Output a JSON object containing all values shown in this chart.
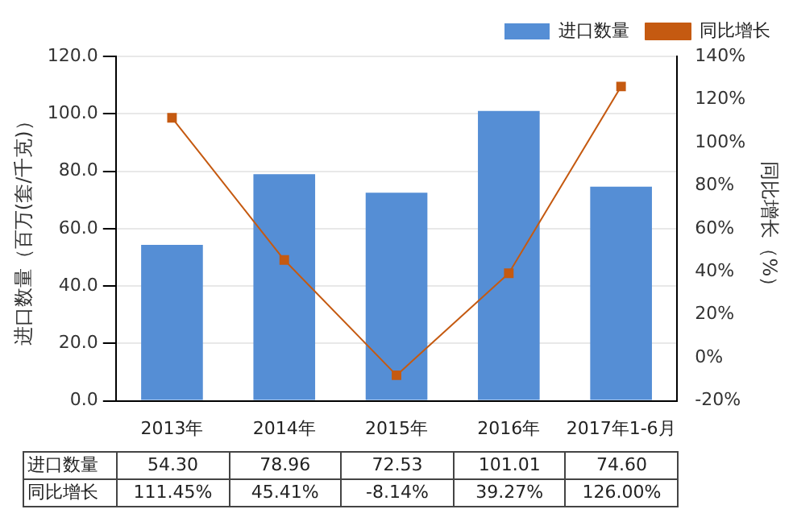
{
  "chart_data": {
    "type": "bar",
    "categories": [
      "2013年",
      "2014年",
      "2015年",
      "2016年",
      "2017年1-6月"
    ],
    "ylabel": "进口数量（百万(套/千克)）",
    "y2label": "同比增长（%）",
    "ylim": [
      0,
      120
    ],
    "yticks": [
      {
        "value": 0,
        "label": "0.0"
      },
      {
        "value": 20,
        "label": "20.0"
      },
      {
        "value": 40,
        "label": "40.0"
      },
      {
        "value": 60,
        "label": "60.0"
      },
      {
        "value": 80,
        "label": "80.0"
      },
      {
        "value": 100,
        "label": "100.0"
      },
      {
        "value": 120,
        "label": "120.0"
      }
    ],
    "y2lim": [
      -20,
      140
    ],
    "y2ticks": [
      {
        "value": -20,
        "label": "-20%"
      },
      {
        "value": 0,
        "label": "0%"
      },
      {
        "value": 20,
        "label": "20%"
      },
      {
        "value": 40,
        "label": "40%"
      },
      {
        "value": 60,
        "label": "60%"
      },
      {
        "value": 80,
        "label": "80%"
      },
      {
        "value": 100,
        "label": "100%"
      },
      {
        "value": 120,
        "label": "120%"
      },
      {
        "value": 140,
        "label": "140%"
      }
    ],
    "series": [
      {
        "name": "进口数量",
        "color": "#558ed5",
        "values": [
          54.3,
          78.96,
          72.53,
          101.01,
          74.6
        ],
        "value_labels": [
          "54.30",
          "78.96",
          "72.53",
          "101.01",
          "74.60"
        ]
      },
      {
        "name": "同比增长",
        "type": "line",
        "axis": "y2",
        "color": "#c55a11",
        "values": [
          111.45,
          45.41,
          -8.14,
          39.27,
          126
        ],
        "value_labels": [
          "111.45%",
          "45.41%",
          "-8.14%",
          "39.27%",
          "126.00%"
        ]
      }
    ],
    "grid": "y",
    "legend": "top right",
    "marker": "square"
  }
}
